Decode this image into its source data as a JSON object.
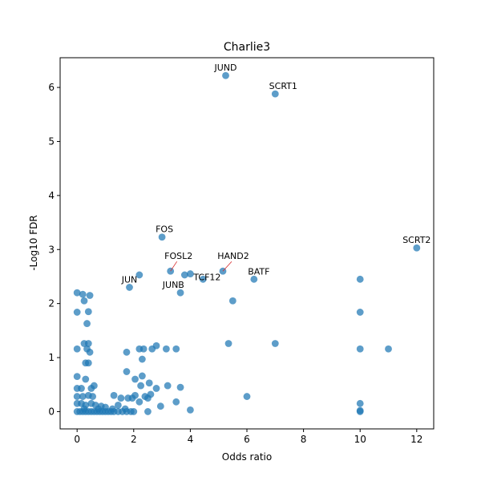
{
  "chart_data": {
    "type": "scatter",
    "title": "Charlie3",
    "xlabel": "Odds ratio",
    "ylabel": "-Log10 FDR",
    "xlim": [
      -0.6,
      12.6
    ],
    "ylim": [
      -0.32,
      6.55
    ],
    "xticks": [
      "0",
      "2",
      "4",
      "6",
      "8",
      "10",
      "12"
    ],
    "yticks": [
      "0",
      "1",
      "2",
      "3",
      "4",
      "5",
      "6"
    ],
    "grid": false,
    "point_color": "#1f77b4",
    "leader_line_color": "#d62728",
    "points": [
      {
        "x": 5.25,
        "y": 6.22
      },
      {
        "x": 7.0,
        "y": 5.88
      },
      {
        "x": 3.0,
        "y": 3.23
      },
      {
        "x": 12.0,
        "y": 3.03
      },
      {
        "x": 3.3,
        "y": 2.6
      },
      {
        "x": 5.15,
        "y": 2.6
      },
      {
        "x": 3.8,
        "y": 2.53
      },
      {
        "x": 4.0,
        "y": 2.55
      },
      {
        "x": 2.2,
        "y": 2.53
      },
      {
        "x": 4.45,
        "y": 2.45
      },
      {
        "x": 6.25,
        "y": 2.45
      },
      {
        "x": 1.85,
        "y": 2.3
      },
      {
        "x": 3.65,
        "y": 2.2
      },
      {
        "x": 5.5,
        "y": 2.05
      },
      {
        "x": 10.0,
        "y": 2.45
      },
      {
        "x": 10.0,
        "y": 1.84
      },
      {
        "x": 0.0,
        "y": 2.2
      },
      {
        "x": 0.2,
        "y": 2.17
      },
      {
        "x": 0.45,
        "y": 2.15
      },
      {
        "x": 0.25,
        "y": 2.05
      },
      {
        "x": 0.0,
        "y": 1.84
      },
      {
        "x": 0.4,
        "y": 1.85
      },
      {
        "x": 0.35,
        "y": 1.63
      },
      {
        "x": 5.35,
        "y": 1.26
      },
      {
        "x": 7.0,
        "y": 1.26
      },
      {
        "x": 2.8,
        "y": 1.22
      },
      {
        "x": 2.65,
        "y": 1.16
      },
      {
        "x": 2.2,
        "y": 1.16
      },
      {
        "x": 2.35,
        "y": 1.16
      },
      {
        "x": 3.15,
        "y": 1.16
      },
      {
        "x": 3.5,
        "y": 1.16
      },
      {
        "x": 1.75,
        "y": 1.1
      },
      {
        "x": 10.0,
        "y": 1.16
      },
      {
        "x": 11.0,
        "y": 1.16
      },
      {
        "x": 0.0,
        "y": 1.16
      },
      {
        "x": 0.25,
        "y": 1.26
      },
      {
        "x": 0.4,
        "y": 1.26
      },
      {
        "x": 0.35,
        "y": 1.16
      },
      {
        "x": 0.45,
        "y": 1.1
      },
      {
        "x": 0.3,
        "y": 0.9
      },
      {
        "x": 0.4,
        "y": 0.9
      },
      {
        "x": 2.3,
        "y": 0.97
      },
      {
        "x": 1.75,
        "y": 0.74
      },
      {
        "x": 2.3,
        "y": 0.66
      },
      {
        "x": 2.05,
        "y": 0.6
      },
      {
        "x": 0.0,
        "y": 0.65
      },
      {
        "x": 0.3,
        "y": 0.6
      },
      {
        "x": 2.55,
        "y": 0.53
      },
      {
        "x": 2.25,
        "y": 0.48
      },
      {
        "x": 3.2,
        "y": 0.48
      },
      {
        "x": 3.65,
        "y": 0.45
      },
      {
        "x": 2.8,
        "y": 0.43
      },
      {
        "x": 0.6,
        "y": 0.48
      },
      {
        "x": 0.0,
        "y": 0.43
      },
      {
        "x": 0.15,
        "y": 0.43
      },
      {
        "x": 0.5,
        "y": 0.43
      },
      {
        "x": 2.6,
        "y": 0.32
      },
      {
        "x": 2.4,
        "y": 0.28
      },
      {
        "x": 2.05,
        "y": 0.3
      },
      {
        "x": 1.3,
        "y": 0.3
      },
      {
        "x": 1.55,
        "y": 0.25
      },
      {
        "x": 1.8,
        "y": 0.25
      },
      {
        "x": 1.95,
        "y": 0.25
      },
      {
        "x": 2.5,
        "y": 0.25
      },
      {
        "x": 3.5,
        "y": 0.18
      },
      {
        "x": 2.95,
        "y": 0.1
      },
      {
        "x": 1.45,
        "y": 0.12
      },
      {
        "x": 2.2,
        "y": 0.18
      },
      {
        "x": 6.0,
        "y": 0.28
      },
      {
        "x": 10.0,
        "y": 0.15
      },
      {
        "x": 0.0,
        "y": 0.28
      },
      {
        "x": 0.2,
        "y": 0.28
      },
      {
        "x": 0.4,
        "y": 0.3
      },
      {
        "x": 0.55,
        "y": 0.28
      },
      {
        "x": 0.0,
        "y": 0.15
      },
      {
        "x": 0.15,
        "y": 0.15
      },
      {
        "x": 0.3,
        "y": 0.12
      },
      {
        "x": 0.5,
        "y": 0.15
      },
      {
        "x": 0.65,
        "y": 0.12
      },
      {
        "x": 0.85,
        "y": 0.1
      },
      {
        "x": 1.0,
        "y": 0.08
      },
      {
        "x": 0.0,
        "y": 0.0
      },
      {
        "x": 0.1,
        "y": 0.0
      },
      {
        "x": 0.2,
        "y": 0.0
      },
      {
        "x": 0.3,
        "y": 0.0
      },
      {
        "x": 0.4,
        "y": 0.0
      },
      {
        "x": 0.5,
        "y": 0.0
      },
      {
        "x": 0.6,
        "y": 0.0
      },
      {
        "x": 0.7,
        "y": 0.0
      },
      {
        "x": 0.8,
        "y": 0.0
      },
      {
        "x": 0.9,
        "y": 0.0
      },
      {
        "x": 1.0,
        "y": 0.0
      },
      {
        "x": 1.1,
        "y": 0.0
      },
      {
        "x": 1.2,
        "y": 0.0
      },
      {
        "x": 1.3,
        "y": 0.0
      },
      {
        "x": 1.45,
        "y": 0.0
      },
      {
        "x": 1.6,
        "y": 0.0
      },
      {
        "x": 1.75,
        "y": 0.0
      },
      {
        "x": 1.9,
        "y": 0.0
      },
      {
        "x": 2.0,
        "y": 0.0
      },
      {
        "x": 2.5,
        "y": 0.0
      },
      {
        "x": 4.0,
        "y": 0.03
      },
      {
        "x": 10.0,
        "y": 0.0
      },
      {
        "x": 10.0,
        "y": 0.02
      },
      {
        "x": 0.25,
        "y": 0.05
      },
      {
        "x": 0.75,
        "y": 0.05
      },
      {
        "x": 1.25,
        "y": 0.05
      },
      {
        "x": 1.7,
        "y": 0.05
      }
    ],
    "annotations": [
      {
        "label": "JUND",
        "x": 5.25,
        "y": 6.22
      },
      {
        "label": "SCRT1",
        "x": 7.0,
        "y": 5.88
      },
      {
        "label": "FOS",
        "x": 3.0,
        "y": 3.23
      },
      {
        "label": "SCRT2",
        "x": 12.0,
        "y": 3.03
      },
      {
        "label": "FOSL2",
        "x": 3.3,
        "y": 2.6
      },
      {
        "label": "HAND2",
        "x": 5.15,
        "y": 2.6
      },
      {
        "label": "TCF12",
        "x": 4.0,
        "y": 2.55
      },
      {
        "label": "BATF",
        "x": 6.25,
        "y": 2.45
      },
      {
        "label": "JUN",
        "x": 1.85,
        "y": 2.3
      },
      {
        "label": "JUNB",
        "x": 3.8,
        "y": 2.53
      }
    ]
  }
}
